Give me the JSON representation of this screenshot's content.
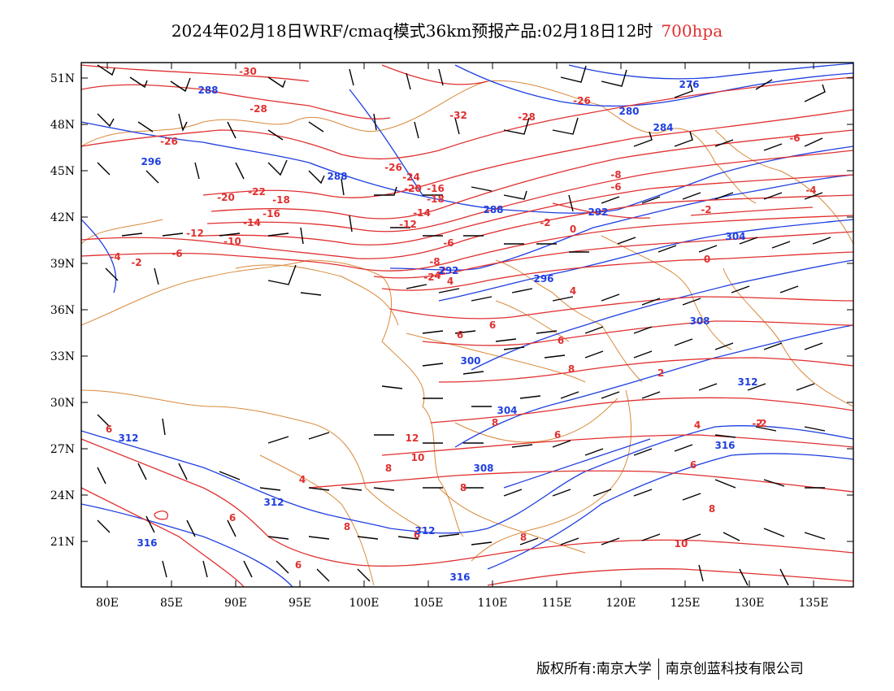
{
  "title": {
    "main": "2024年02月18日WRF/cmaq模式36km预报产品:02月18日12时",
    "level": "700hpa"
  },
  "axes": {
    "lat_labels": [
      "51N",
      "48N",
      "45N",
      "42N",
      "39N",
      "36N",
      "33N",
      "30N",
      "27N",
      "24N",
      "21N"
    ],
    "lon_labels": [
      "80E",
      "85E",
      "90E",
      "95E",
      "100E",
      "105E",
      "110E",
      "115E",
      "120E",
      "125E",
      "130E",
      "135E"
    ]
  },
  "colors": {
    "temperature": "#e03030",
    "geopotential": "#1f3fe0",
    "boundary": "#d8893a",
    "wind": "#000000"
  },
  "temperature_labels": [
    "-30",
    "-28",
    "-26",
    "-32",
    "-28",
    "-26",
    "-26",
    "-24",
    "-22",
    "-20",
    "-20",
    "-18",
    "-18",
    "-16",
    "-16",
    "-14",
    "-14",
    "-12",
    "-12",
    "-10",
    "-8",
    "-6",
    "-4",
    "-2",
    "-2",
    "-6",
    "-6",
    "-8",
    "-6",
    "-4",
    "-2",
    "0",
    "-4",
    "-2",
    "0",
    "-2",
    "2",
    "4",
    "6",
    "4",
    "6",
    "8",
    "8",
    "10",
    "12",
    "6",
    "8",
    "8",
    "6",
    "4",
    "2",
    "-2",
    "4",
    "6",
    "6",
    "8",
    "8",
    "10",
    "8",
    "6",
    "6",
    "6"
  ],
  "height_labels": [
    "288",
    "296",
    "288",
    "288",
    "292",
    "296",
    "300",
    "304",
    "308",
    "312",
    "312",
    "312",
    "316",
    "316",
    "316",
    "276",
    "280",
    "284",
    "292",
    "304",
    "308",
    "312"
  ],
  "footer": {
    "left": "版权所有:南京大学",
    "right": "南京创蓝科技有限公司"
  }
}
